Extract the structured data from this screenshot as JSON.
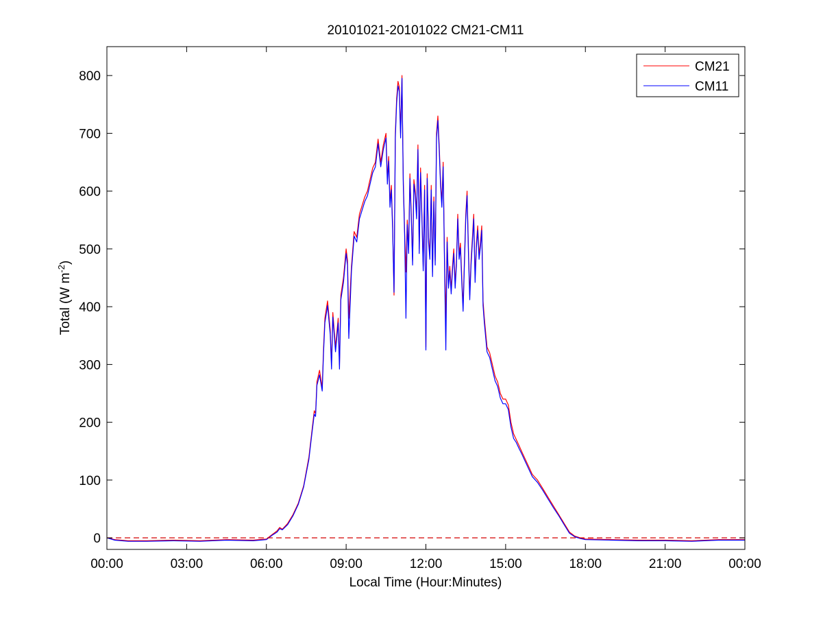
{
  "chart_data": {
    "type": "line",
    "title": "20101021-20101022 CM21-CM11",
    "xlabel": "Local Time (Hour:Minutes)",
    "ylabel": {
      "main": "Total (W m",
      "sup": "-2",
      "close": ")"
    },
    "xlim": [
      0,
      24
    ],
    "ylim": [
      -20,
      850
    ],
    "x_ticks": [
      0,
      3,
      6,
      9,
      12,
      15,
      18,
      21,
      24
    ],
    "x_tick_labels": [
      "00:00",
      "03:00",
      "06:00",
      "09:00",
      "12:00",
      "15:00",
      "18:00",
      "21:00",
      "00:00"
    ],
    "y_ticks": [
      0,
      100,
      200,
      300,
      400,
      500,
      600,
      700,
      800
    ],
    "y_tick_labels": [
      "0",
      "100",
      "200",
      "300",
      "400",
      "500",
      "600",
      "700",
      "800"
    ],
    "grid": false,
    "legend_position": "top-right",
    "reference_line": {
      "y": 0,
      "style": "dashed",
      "color": "#d40000"
    },
    "series": [
      {
        "name": "CM21",
        "color": "#ff0000",
        "x": [
          0,
          0.3,
          0.8,
          1.5,
          2.5,
          3.5,
          4.5,
          5.5,
          6.0,
          6.2,
          6.4,
          6.5,
          6.6,
          6.8,
          7.0,
          7.2,
          7.4,
          7.6,
          7.7,
          7.8,
          7.85,
          7.9,
          8.0,
          8.1,
          8.15,
          8.2,
          8.3,
          8.4,
          8.45,
          8.5,
          8.6,
          8.7,
          8.75,
          8.8,
          8.9,
          9.0,
          9.05,
          9.1,
          9.2,
          9.3,
          9.4,
          9.5,
          9.6,
          9.7,
          9.8,
          9.9,
          10.0,
          10.1,
          10.2,
          10.3,
          10.4,
          10.5,
          10.55,
          10.6,
          10.65,
          10.7,
          10.75,
          10.8,
          10.85,
          10.9,
          10.95,
          11.0,
          11.05,
          11.1,
          11.15,
          11.2,
          11.25,
          11.3,
          11.35,
          11.4,
          11.45,
          11.5,
          11.55,
          11.6,
          11.65,
          11.7,
          11.75,
          11.8,
          11.85,
          11.9,
          11.95,
          12.0,
          12.05,
          12.1,
          12.15,
          12.2,
          12.25,
          12.3,
          12.35,
          12.4,
          12.45,
          12.5,
          12.55,
          12.6,
          12.65,
          12.7,
          12.75,
          12.8,
          12.85,
          12.9,
          12.95,
          13.0,
          13.05,
          13.1,
          13.15,
          13.2,
          13.25,
          13.3,
          13.35,
          13.4,
          13.45,
          13.5,
          13.55,
          13.6,
          13.65,
          13.7,
          13.75,
          13.8,
          13.85,
          13.9,
          13.95,
          14.0,
          14.05,
          14.1,
          14.15,
          14.2,
          14.3,
          14.4,
          14.5,
          14.6,
          14.7,
          14.8,
          14.9,
          15.0,
          15.1,
          15.2,
          15.3,
          15.4,
          15.5,
          15.6,
          15.7,
          15.8,
          15.9,
          16.0,
          16.2,
          16.4,
          16.6,
          16.8,
          17.0,
          17.2,
          17.4,
          17.6,
          17.8,
          18.0,
          19.0,
          20.0,
          21.0,
          22.0,
          23.0,
          24.0
        ],
        "y": [
          0,
          -3,
          -5,
          -5,
          -4,
          -5,
          -3,
          -4,
          -2,
          5,
          12,
          18,
          15,
          25,
          40,
          60,
          90,
          140,
          180,
          220,
          215,
          270,
          290,
          260,
          330,
          380,
          410,
          360,
          300,
          390,
          330,
          380,
          300,
          420,
          450,
          500,
          480,
          380,
          470,
          530,
          520,
          560,
          575,
          590,
          600,
          620,
          640,
          650,
          690,
          650,
          680,
          700,
          620,
          660,
          580,
          610,
          540,
          420,
          700,
          760,
          790,
          780,
          700,
          800,
          620,
          530,
          460,
          550,
          500,
          630,
          560,
          480,
          620,
          600,
          560,
          680,
          500,
          640,
          560,
          470,
          610,
          330,
          630,
          520,
          490,
          610,
          460,
          590,
          480,
          700,
          730,
          680,
          620,
          580,
          650,
          480,
          380,
          520,
          440,
          470,
          430,
          470,
          500,
          440,
          480,
          560,
          490,
          510,
          450,
          400,
          480,
          560,
          600,
          500,
          420,
          480,
          520,
          560,
          450,
          510,
          540,
          490,
          510,
          540,
          410,
          380,
          330,
          320,
          300,
          280,
          270,
          250,
          240,
          240,
          230,
          200,
          180,
          170,
          160,
          150,
          140,
          130,
          120,
          110,
          100,
          85,
          70,
          55,
          40,
          25,
          10,
          3,
          0,
          -2,
          -3,
          -4,
          -4,
          -5,
          -3,
          -3
        ]
      },
      {
        "name": "CM11",
        "color": "#0000ff",
        "x": [
          0,
          0.3,
          0.8,
          1.5,
          2.5,
          3.5,
          4.5,
          5.5,
          6.0,
          6.2,
          6.4,
          6.5,
          6.6,
          6.8,
          7.0,
          7.2,
          7.4,
          7.6,
          7.7,
          7.8,
          7.85,
          7.9,
          8.0,
          8.1,
          8.15,
          8.2,
          8.3,
          8.4,
          8.45,
          8.5,
          8.6,
          8.7,
          8.75,
          8.8,
          8.9,
          9.0,
          9.05,
          9.1,
          9.2,
          9.3,
          9.4,
          9.5,
          9.6,
          9.7,
          9.8,
          9.9,
          10.0,
          10.1,
          10.2,
          10.3,
          10.4,
          10.5,
          10.55,
          10.6,
          10.65,
          10.7,
          10.75,
          10.8,
          10.85,
          10.9,
          10.95,
          11.0,
          11.05,
          11.1,
          11.15,
          11.2,
          11.25,
          11.3,
          11.35,
          11.4,
          11.45,
          11.5,
          11.55,
          11.6,
          11.65,
          11.7,
          11.75,
          11.8,
          11.85,
          11.9,
          11.95,
          12.0,
          12.05,
          12.1,
          12.15,
          12.2,
          12.25,
          12.3,
          12.35,
          12.4,
          12.45,
          12.5,
          12.55,
          12.6,
          12.65,
          12.7,
          12.75,
          12.8,
          12.85,
          12.9,
          12.95,
          13.0,
          13.05,
          13.1,
          13.15,
          13.2,
          13.25,
          13.3,
          13.35,
          13.4,
          13.45,
          13.5,
          13.55,
          13.6,
          13.65,
          13.7,
          13.75,
          13.8,
          13.85,
          13.9,
          13.95,
          14.0,
          14.05,
          14.1,
          14.15,
          14.2,
          14.3,
          14.4,
          14.5,
          14.6,
          14.7,
          14.8,
          14.9,
          15.0,
          15.1,
          15.2,
          15.3,
          15.4,
          15.5,
          15.6,
          15.7,
          15.8,
          15.9,
          16.0,
          16.2,
          16.4,
          16.6,
          16.8,
          17.0,
          17.2,
          17.4,
          17.6,
          17.8,
          18.0,
          19.0,
          20.0,
          21.0,
          22.0,
          23.0,
          24.0
        ],
        "y": [
          0,
          -4,
          -6,
          -6,
          -5,
          -6,
          -4,
          -5,
          -3,
          4,
          10,
          16,
          14,
          23,
          38,
          58,
          88,
          136,
          176,
          214,
          210,
          264,
          282,
          254,
          322,
          372,
          402,
          352,
          292,
          382,
          322,
          372,
          292,
          412,
          442,
          492,
          472,
          345,
          462,
          522,
          512,
          552,
          567,
          582,
          592,
          612,
          632,
          642,
          682,
          642,
          672,
          692,
          612,
          652,
          572,
          602,
          532,
          425,
          692,
          752,
          782,
          772,
          692,
          795,
          612,
          522,
          380,
          542,
          492,
          622,
          552,
          472,
          612,
          592,
          552,
          672,
          492,
          632,
          552,
          462,
          602,
          325,
          622,
          512,
          482,
          602,
          452,
          582,
          472,
          692,
          722,
          672,
          612,
          572,
          642,
          472,
          325,
          512,
          432,
          462,
          422,
          462,
          492,
          432,
          472,
          552,
          482,
          502,
          442,
          392,
          472,
          552,
          592,
          492,
          412,
          472,
          512,
          552,
          442,
          502,
          532,
          482,
          502,
          532,
          402,
          372,
          322,
          312,
          292,
          272,
          262,
          242,
          232,
          232,
          222,
          192,
          172,
          165,
          155,
          146,
          136,
          126,
          116,
          106,
          96,
          82,
          67,
          52,
          38,
          23,
          8,
          2,
          -1,
          -3,
          -4,
          -5,
          -5,
          -6,
          -4,
          -4
        ]
      }
    ]
  }
}
